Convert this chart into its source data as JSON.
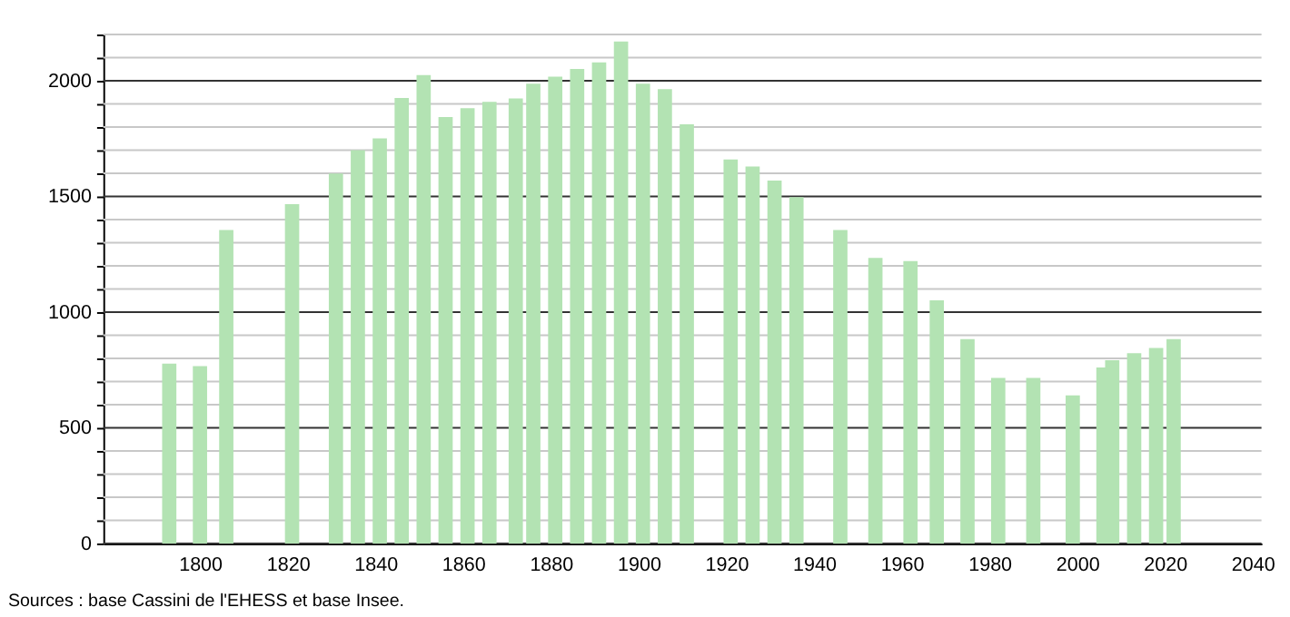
{
  "chart_data": {
    "type": "bar",
    "x": [
      1793,
      1800,
      1806,
      1821,
      1831,
      1836,
      1841,
      1846,
      1851,
      1856,
      1861,
      1866,
      1872,
      1876,
      1881,
      1886,
      1891,
      1896,
      1901,
      1906,
      1911,
      1921,
      1926,
      1931,
      1936,
      1946,
      1954,
      1962,
      1968,
      1975,
      1982,
      1990,
      1999,
      2006,
      2008,
      2013,
      2018,
      2022
    ],
    "series": [
      {
        "color": "#b3e3b3",
        "values": [
          777,
          767,
          1355,
          1467,
          1599,
          1700,
          1751,
          1926,
          2025,
          1843,
          1881,
          1909,
          1924,
          1987,
          2018,
          2051,
          2079,
          2170,
          1987,
          1964,
          1812,
          1660,
          1629,
          1569,
          1497,
          1355,
          1234,
          1221,
          1051,
          883,
          716,
          716,
          640,
          761,
          792,
          822,
          845,
          883
        ]
      }
    ],
    "xlim": [
      1780,
      2040
    ],
    "xticks": [
      1800,
      1820,
      1840,
      1860,
      1880,
      1900,
      1920,
      1940,
      1960,
      1980,
      2000,
      2020,
      2040
    ],
    "ylim": [
      0,
      2200
    ],
    "yticks": [
      0,
      {
        "value": 100,
        "label": null
      },
      {
        "value": 200,
        "label": null
      },
      {
        "value": 300,
        "label": null
      },
      {
        "value": 400,
        "label": null
      },
      500,
      {
        "value": 600,
        "label": null
      },
      {
        "value": 700,
        "label": null
      },
      {
        "value": 800,
        "label": null
      },
      {
        "value": 900,
        "label": null
      },
      1000,
      {
        "value": 1100,
        "label": null
      },
      {
        "value": 1200,
        "label": null
      },
      {
        "value": 1300,
        "label": null
      },
      {
        "value": 1400,
        "label": null
      },
      1500,
      {
        "value": 1600,
        "label": null
      },
      {
        "value": 1700,
        "label": null
      },
      {
        "value": 1800,
        "label": null
      },
      {
        "value": 1900,
        "label": null
      },
      2000,
      {
        "value": 2100,
        "label": null
      },
      {
        "value": 2200,
        "label": null
      }
    ],
    "grid": "y",
    "annotations": [
      "Sources : base Cassini de l'EHESS et base Insee."
    ]
  }
}
